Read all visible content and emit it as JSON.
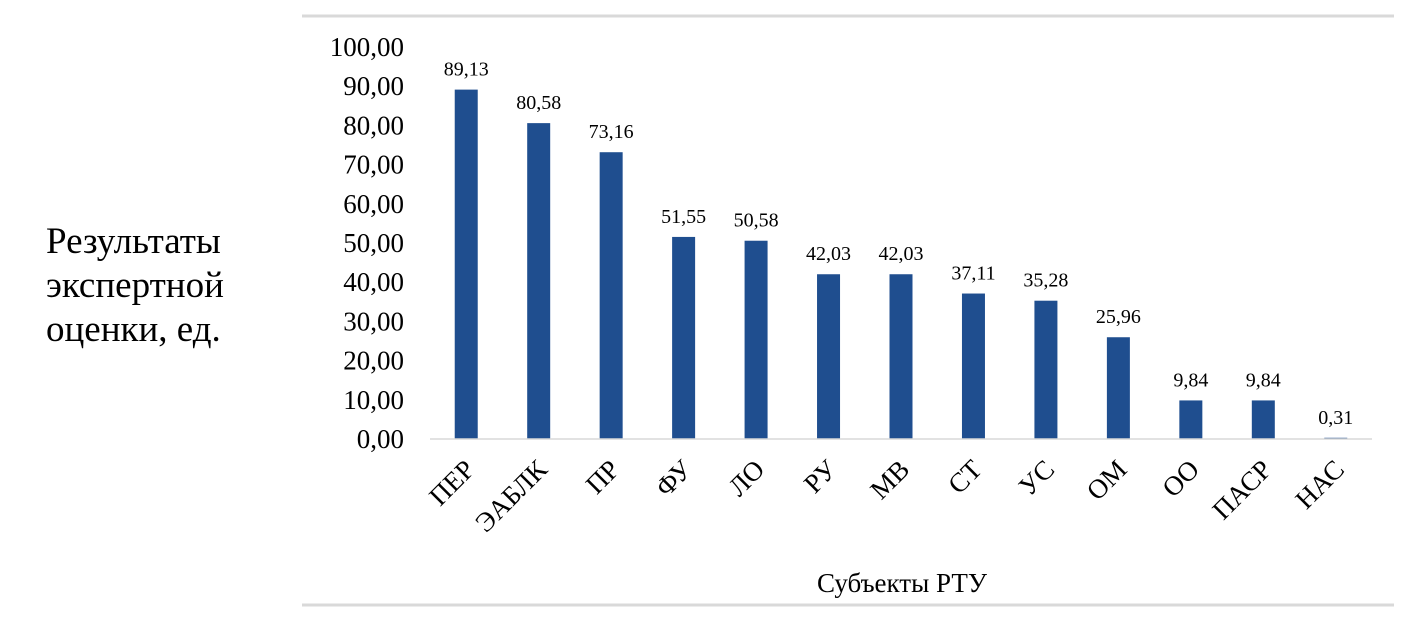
{
  "chart_data": {
    "type": "bar",
    "categories": [
      "ПЕР",
      "ЭАБЛК",
      "ПР",
      "ФУ",
      "ЛО",
      "РУ",
      "МВ",
      "СТ",
      "УС",
      "ОМ",
      "ОО",
      "ПАСР",
      "НАС"
    ],
    "values": [
      89.13,
      80.58,
      73.16,
      51.55,
      50.58,
      42.03,
      42.03,
      37.11,
      35.28,
      25.96,
      9.84,
      9.84,
      0.31
    ],
    "data_labels": [
      "89,13",
      "80,58",
      "73,16",
      "51,55",
      "50,58",
      "42,03",
      "42,03",
      "37,11",
      "35,28",
      "25,96",
      "9,84",
      "9,84",
      "0,31"
    ],
    "y_ticks": [
      "0,00",
      "10,00",
      "20,00",
      "30,00",
      "40,00",
      "50,00",
      "60,00",
      "70,00",
      "80,00",
      "90,00",
      "100,00"
    ],
    "ylim": [
      0,
      100
    ],
    "xlabel": "Субъекты РТУ",
    "ylabel_lines": [
      "Результаты",
      "экспертной",
      "оценки, ед."
    ],
    "grid": false,
    "bar_color": "#1f4e8f"
  }
}
